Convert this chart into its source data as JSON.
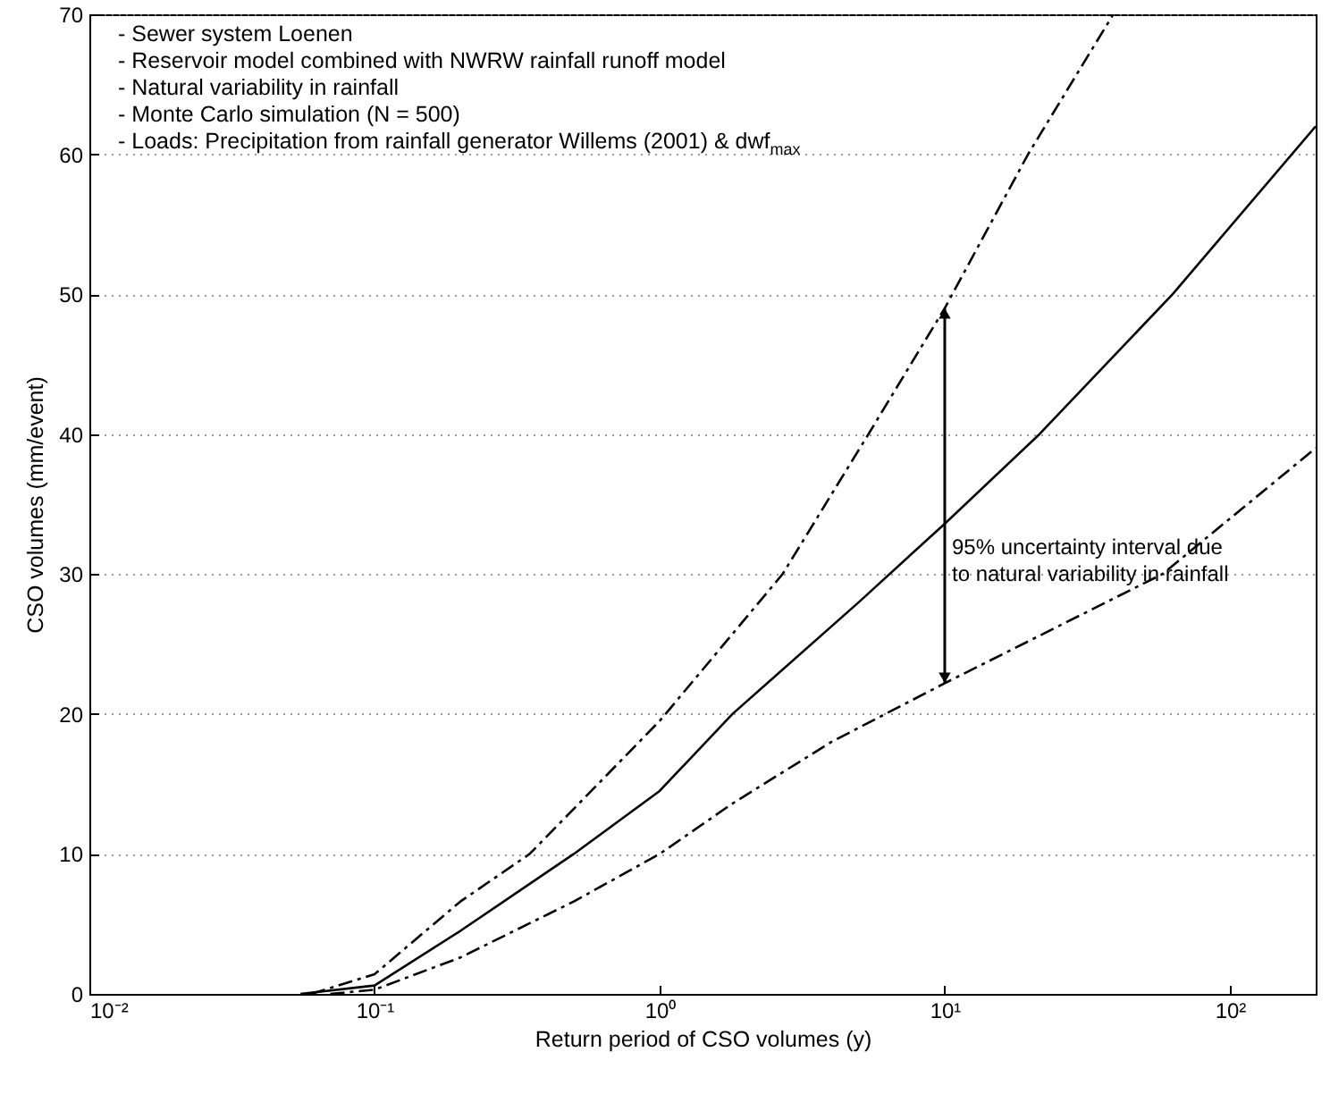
{
  "chart_data": {
    "type": "line",
    "xlabel": "Return period of CSO volumes (y)",
    "ylabel": "CSO volumes (mm/event)",
    "log": "x",
    "grid": "y",
    "xlim": [
      0.01,
      200
    ],
    "xticks": [
      {
        "value": 0.01,
        "label": "10⁻²"
      },
      {
        "value": 0.1,
        "label": "10⁻¹"
      },
      {
        "value": 1,
        "label": "10⁰"
      },
      {
        "value": 10,
        "label": "10¹"
      },
      {
        "value": 100,
        "label": "10²"
      }
    ],
    "ylim": [
      0,
      70
    ],
    "yticks": [
      0,
      10,
      20,
      30,
      40,
      50,
      60,
      70
    ],
    "series": [
      {
        "color": "#000000",
        "line_style": "solid",
        "x": [
          0.055,
          0.1,
          0.2,
          0.5,
          1,
          1.8,
          5,
          10,
          21.5,
          63,
          200
        ],
        "values": [
          0,
          0.6,
          4.5,
          10,
          14.5,
          20,
          28,
          33.6,
          40,
          50,
          62
        ]
      },
      {
        "color": "#000000",
        "line_style": "dashed",
        "x": [
          0.06,
          0.1,
          0.2,
          0.35,
          1,
          2.7,
          5.4,
          10,
          19.6,
          39
        ],
        "values": [
          0,
          1.4,
          6.6,
          10,
          19.5,
          30,
          40,
          49,
          60,
          70
        ]
      },
      {
        "color": "#000000",
        "line_style": "dashed",
        "x": [
          0.07,
          0.1,
          0.2,
          0.5,
          1,
          1.8,
          4,
          10,
          58,
          200
        ],
        "values": [
          0,
          0.3,
          2.6,
          6.6,
          10,
          13.6,
          18,
          22.2,
          30,
          39
        ]
      }
    ],
    "annotations": [
      "- Sewer system Loenen",
      "- Reservoir model combined with NWRW rainfall runoff model",
      "- Natural variability in rainfall",
      "- Monte Carlo simulation (N = 500)",
      "- Loads: Precipitation from rainfall generator Willems (2001) & dwf$_{max}$",
      {
        "text": "95% uncertainty interval due\nto natural variability in rainfall",
        "x": 10,
        "y": 33.6
      }
    ]
  }
}
